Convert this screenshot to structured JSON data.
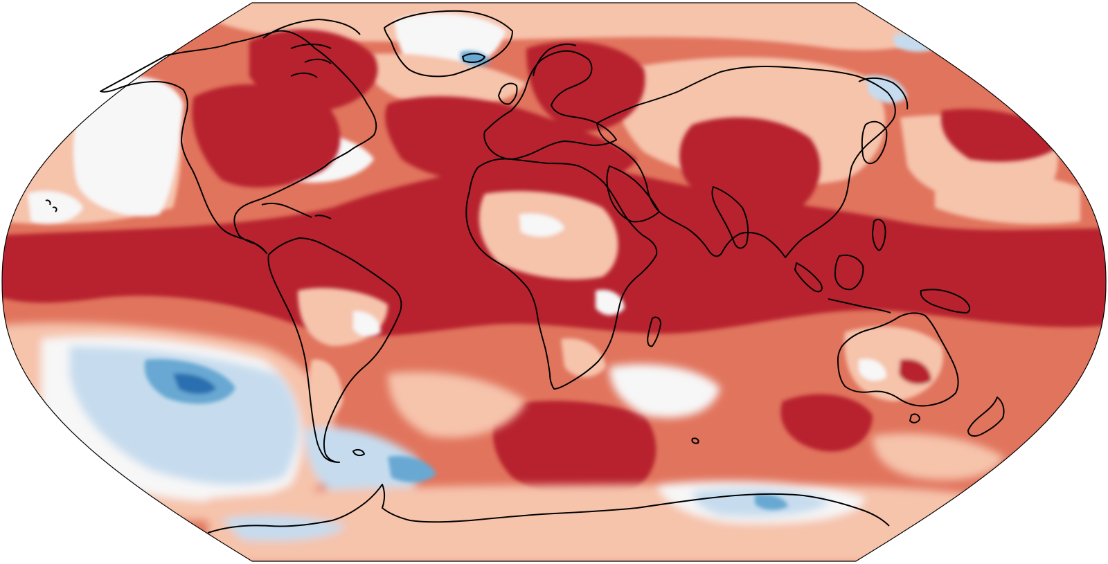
{
  "map": {
    "projection": "robinson",
    "colors": {
      "deep_red": "#b7242f",
      "red": "#e1745d",
      "salmon": "#f6c3ab",
      "white": "#f7f7f7",
      "light_blue": "#c6dcee",
      "blue": "#68a8d2",
      "dark_blue": "#2c6fb0",
      "coastline": "#000000",
      "frame": "#000000"
    }
  }
}
